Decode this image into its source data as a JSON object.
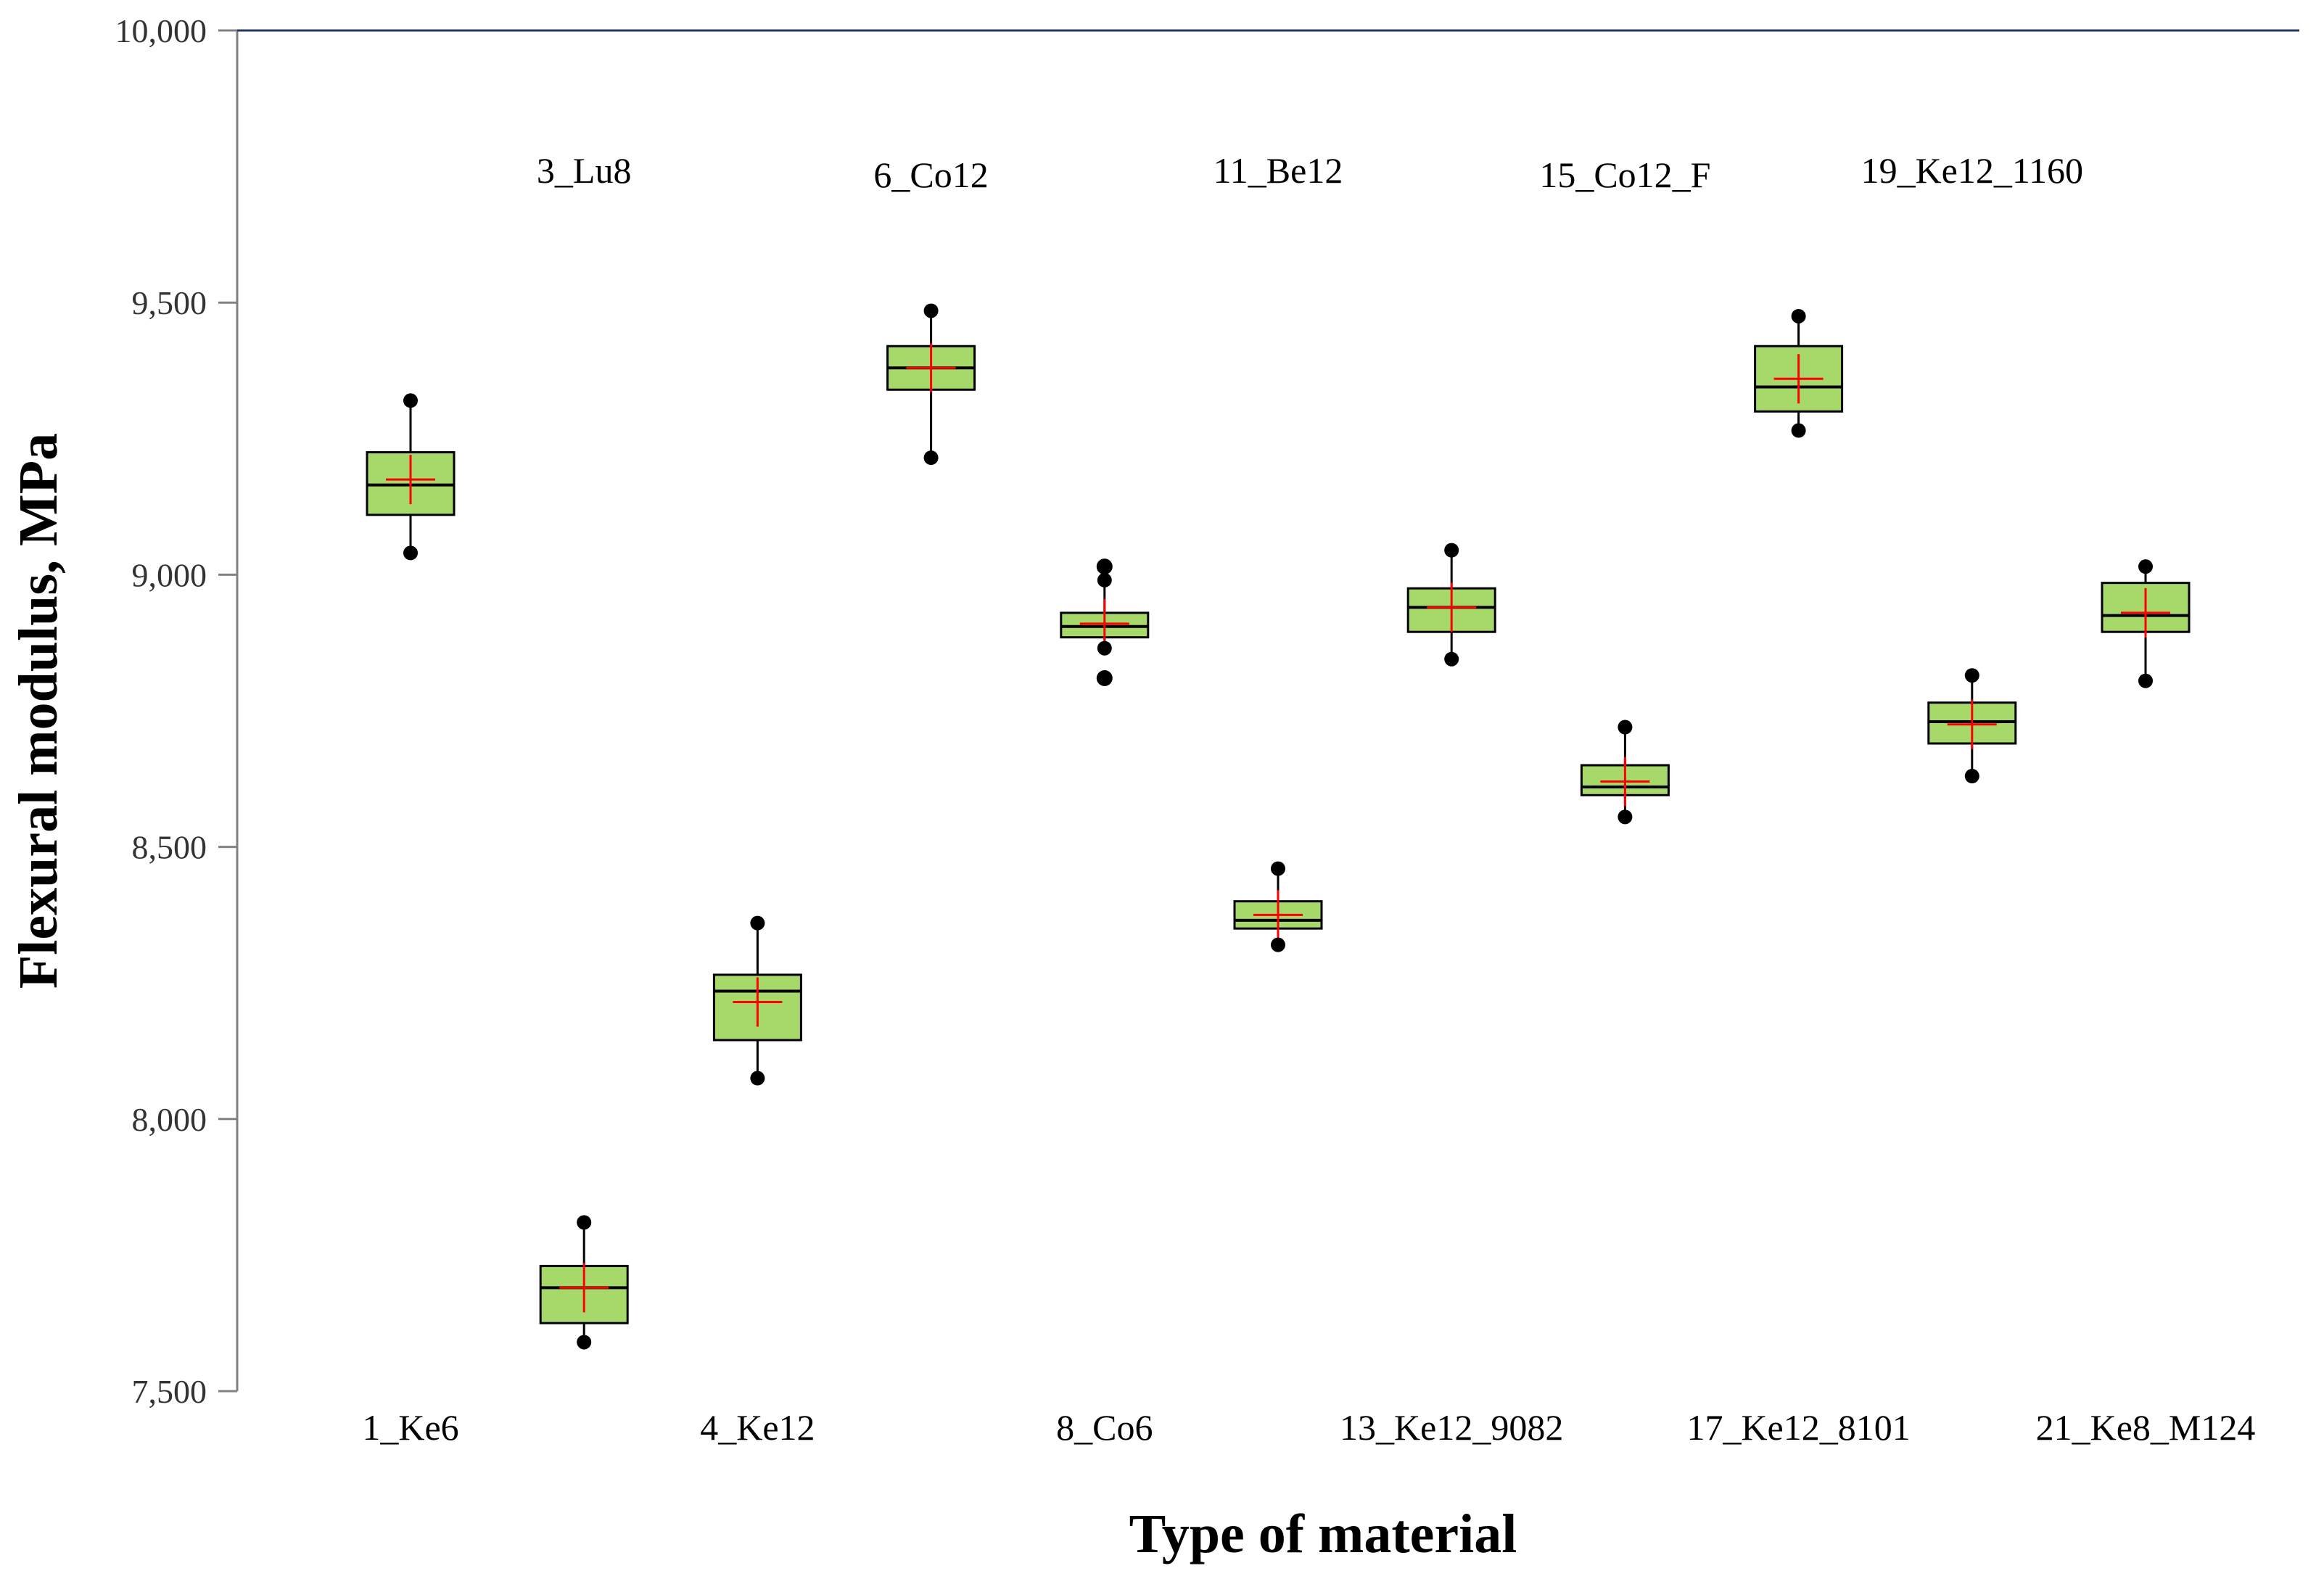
{
  "chart_data": {
    "type": "box",
    "title": "",
    "xlabel": "Type of material",
    "ylabel": "Flexural modulus, MPa",
    "ylim": [
      7500,
      10000
    ],
    "yticks": [
      7500,
      8000,
      8500,
      9000,
      9500,
      10000
    ],
    "ytick_labels": [
      "7,500",
      "8,000",
      "8,500",
      "9,000",
      "9,500",
      "10,000"
    ],
    "categories": [
      "1_Ke6",
      "3_Lu8",
      "4_Ke12",
      "6_Co12",
      "8_Co6",
      "11_Be12",
      "13_Ke12_9082",
      "15_Co12_F",
      "17_Ke12_8101",
      "19_Ke12_1160",
      "21_Ke8_M124"
    ],
    "label_position": [
      "bottom",
      "top",
      "bottom",
      "top",
      "bottom",
      "top",
      "bottom",
      "top",
      "bottom",
      "top",
      "bottom"
    ],
    "series": [
      {
        "name": "1_Ke6",
        "min": 9040,
        "q1": 9110,
        "median": 9165,
        "mean": 9175,
        "q3": 9225,
        "max": 9320,
        "outliers": []
      },
      {
        "name": "3_Lu8",
        "min": 7590,
        "q1": 7625,
        "median": 7690,
        "mean": 7690,
        "q3": 7730,
        "max": 7810,
        "outliers": []
      },
      {
        "name": "4_Ke12",
        "min": 8075,
        "q1": 8145,
        "median": 8235,
        "mean": 8215,
        "q3": 8265,
        "max": 8360,
        "outliers": []
      },
      {
        "name": "6_Co12",
        "min": 9215,
        "q1": 9340,
        "median": 9380,
        "mean": 9380,
        "q3": 9420,
        "max": 9485,
        "outliers": []
      },
      {
        "name": "8_Co6",
        "min": 8865,
        "q1": 8885,
        "median": 8905,
        "mean": 8910,
        "q3": 8930,
        "max": 8990,
        "outliers": [
          8810,
          9015
        ]
      },
      {
        "name": "11_Be12",
        "min": 8320,
        "q1": 8350,
        "median": 8365,
        "mean": 8375,
        "q3": 8400,
        "max": 8460,
        "outliers": []
      },
      {
        "name": "13_Ke12_9082",
        "min": 8845,
        "q1": 8895,
        "median": 8940,
        "mean": 8940,
        "q3": 8975,
        "max": 9045,
        "outliers": []
      },
      {
        "name": "15_Co12_F",
        "min": 8555,
        "q1": 8595,
        "median": 8610,
        "mean": 8620,
        "q3": 8650,
        "max": 8720,
        "outliers": []
      },
      {
        "name": "17_Ke12_8101",
        "min": 9265,
        "q1": 9300,
        "median": 9345,
        "mean": 9360,
        "q3": 9420,
        "max": 9475,
        "outliers": []
      },
      {
        "name": "19_Ke12_1160",
        "min": 8630,
        "q1": 8690,
        "median": 8730,
        "mean": 8725,
        "q3": 8765,
        "max": 8815,
        "outliers": []
      },
      {
        "name": "21_Ke8_M124",
        "min": 8805,
        "q1": 8895,
        "median": 8925,
        "mean": 8930,
        "q3": 8985,
        "max": 9015,
        "outliers": []
      }
    ],
    "colors": {
      "box_fill": "#a6d96a",
      "box_stroke": "#000000",
      "mean_marker": "#ff0000",
      "axis": "#808080",
      "top_line": "#1f3864",
      "point": "#000000"
    },
    "grid": false
  }
}
